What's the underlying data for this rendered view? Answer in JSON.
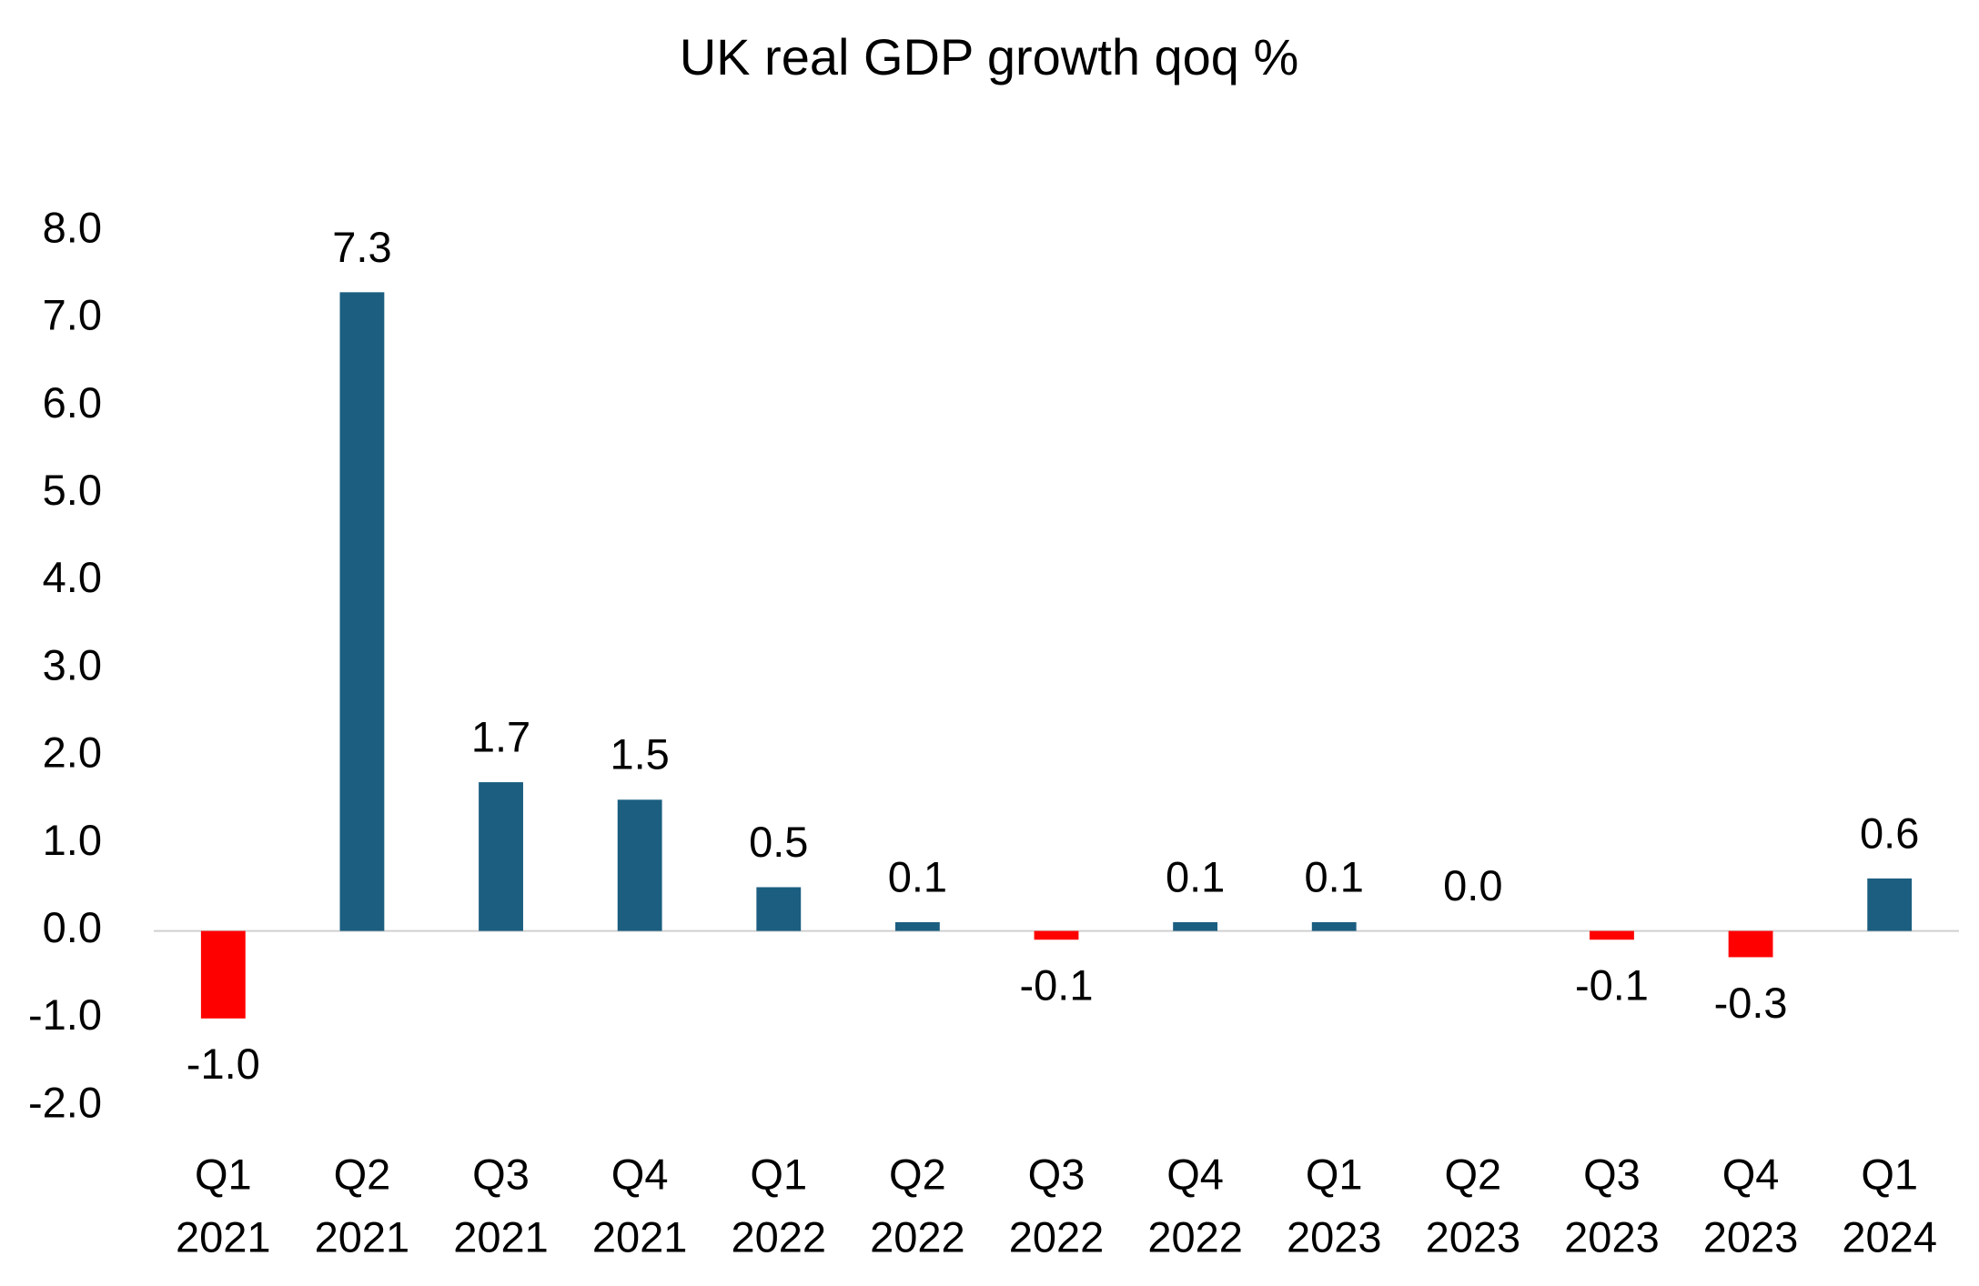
{
  "chart_data": {
    "type": "bar",
    "title": "UK real GDP growth qoq  %",
    "categories": [
      [
        "Q1",
        "2021"
      ],
      [
        "Q2",
        "2021"
      ],
      [
        "Q3",
        "2021"
      ],
      [
        "Q4",
        "2021"
      ],
      [
        "Q1",
        "2022"
      ],
      [
        "Q2",
        "2022"
      ],
      [
        "Q3",
        "2022"
      ],
      [
        "Q4",
        "2022"
      ],
      [
        "Q1",
        "2023"
      ],
      [
        "Q2",
        "2023"
      ],
      [
        "Q3",
        "2023"
      ],
      [
        "Q4",
        "2023"
      ],
      [
        "Q1",
        "2024"
      ]
    ],
    "values": [
      -1.0,
      7.3,
      1.7,
      1.5,
      0.5,
      0.1,
      -0.1,
      0.1,
      0.1,
      0.0,
      -0.1,
      -0.3,
      0.6
    ],
    "value_labels": [
      "-1.0",
      "7.3",
      "1.7",
      "1.5",
      "0.5",
      "0.1",
      "-0.1",
      "0.1",
      "0.1",
      "0.0",
      "-0.1",
      "-0.3",
      "0.6"
    ],
    "color": "#1b5e80",
    "negative_color": "#ff0000",
    "ylim": [
      -2,
      8
    ],
    "yticks": [
      {
        "value": -2,
        "label": "-2.0"
      },
      {
        "value": -1,
        "label": "-1.0"
      },
      {
        "value": 0,
        "label": "0.0"
      },
      {
        "value": 1,
        "label": "1.0"
      },
      {
        "value": 2,
        "label": "2.0"
      },
      {
        "value": 3,
        "label": "3.0"
      },
      {
        "value": 4,
        "label": "4.0"
      },
      {
        "value": 5,
        "label": "5.0"
      },
      {
        "value": 6,
        "label": "6.0"
      },
      {
        "value": 7,
        "label": "7.0"
      },
      {
        "value": 8,
        "label": "8.0"
      }
    ],
    "grid": false
  }
}
